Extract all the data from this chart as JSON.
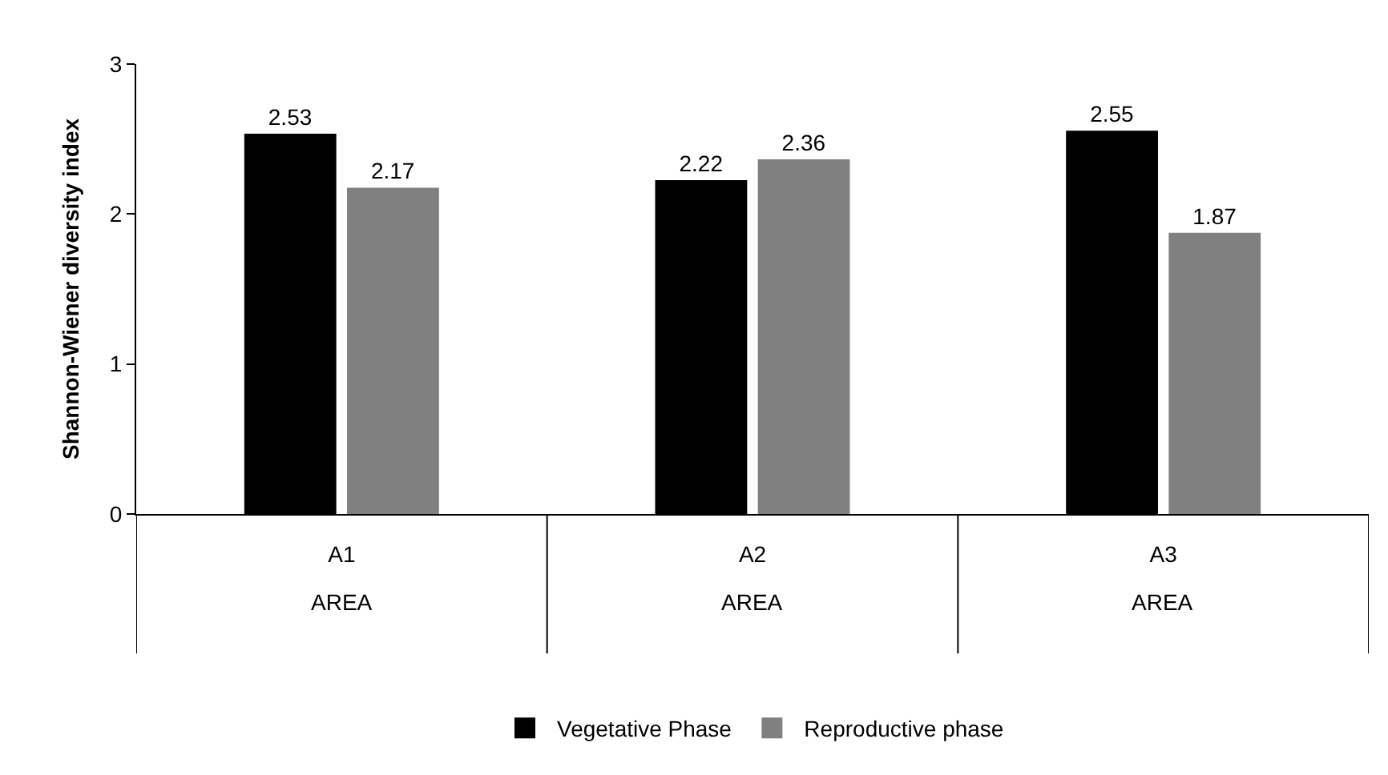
{
  "chart_data": {
    "type": "bar",
    "ylabel": "Shannon-Wiener diversity index",
    "categories": [
      "A1",
      "A2",
      "A3"
    ],
    "series": [
      {
        "name": "Vegetative Phase",
        "color": "#000000",
        "values": [
          2.53,
          2.22,
          2.55
        ]
      },
      {
        "name": "Reproductive phase",
        "color": "#808080",
        "values": [
          2.17,
          2.36,
          1.87
        ]
      }
    ],
    "annotations": [
      "AREA",
      "AREA",
      "AREA"
    ],
    "ylim": [
      0,
      3
    ],
    "yticks": [
      0,
      1,
      2,
      3
    ],
    "legend": "bottom",
    "data_labels": true
  }
}
